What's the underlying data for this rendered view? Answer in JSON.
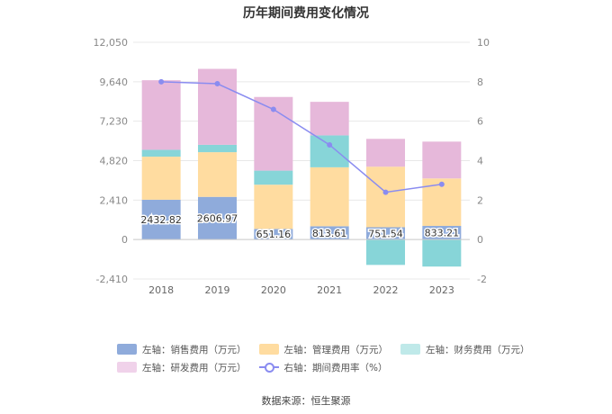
{
  "title": "历年期间费用变化情况",
  "source": "数据来源：恒生聚源",
  "legend": [
    {
      "key": "sales",
      "label": "左轴：销售费用（万元）",
      "color": "#8fabdb"
    },
    {
      "key": "admin",
      "label": "左轴：管理费用（万元）",
      "color": "#ffdca0"
    },
    {
      "key": "finance",
      "label": "左轴：财务费用（万元）",
      "color": "#bfe9e9"
    },
    {
      "key": "rnd",
      "label": "左轴：研发费用（万元）",
      "color": "#f0d2ea"
    },
    {
      "key": "rate",
      "label": "右轴：期间费用率（%）",
      "color": "#8a8cf0"
    }
  ],
  "chart_data": {
    "type": "bar",
    "stacked": true,
    "categories": [
      "2018",
      "2019",
      "2020",
      "2021",
      "2022",
      "2023"
    ],
    "left_axis": {
      "ticks": [
        "12,050",
        "9,640",
        "7,230",
        "4,820",
        "2,410",
        "0",
        "-2,410"
      ],
      "ylim": [
        -2410,
        12050
      ]
    },
    "right_axis": {
      "ticks": [
        "10",
        "8",
        "6",
        "4",
        "2",
        "0",
        "-2"
      ],
      "ylim": [
        -2,
        10
      ]
    },
    "series": [
      {
        "name": "左轴：销售费用（万元）",
        "axis": "left",
        "color": "#8fabdb",
        "values": [
          2432.82,
          2606.97,
          651.16,
          813.61,
          751.54,
          833.21
        ],
        "labels": [
          "2432.82",
          "2606.97",
          "651.16",
          "813.61",
          "751.54",
          "833.21"
        ]
      },
      {
        "name": "左轴：管理费用（万元）",
        "axis": "left",
        "color": "#ffdca0",
        "values": [
          2630,
          2730,
          2700,
          3600,
          3700,
          2900
        ]
      },
      {
        "name": "左轴：财务费用（万元）",
        "axis": "left",
        "color": "#87d5d8",
        "values": [
          420,
          450,
          860,
          1950,
          -1550,
          -1650
        ]
      },
      {
        "name": "左轴：研发费用（万元）",
        "axis": "left",
        "color": "#e6b8da",
        "values": [
          4250,
          4640,
          4500,
          2050,
          1700,
          2250
        ]
      },
      {
        "name": "右轴：期间费用率（%）",
        "axis": "right",
        "type": "line",
        "color": "#8a8cf0",
        "values": [
          8.0,
          7.9,
          6.6,
          4.8,
          2.4,
          2.8
        ]
      }
    ],
    "grid": true,
    "legend_position": "bottom"
  }
}
